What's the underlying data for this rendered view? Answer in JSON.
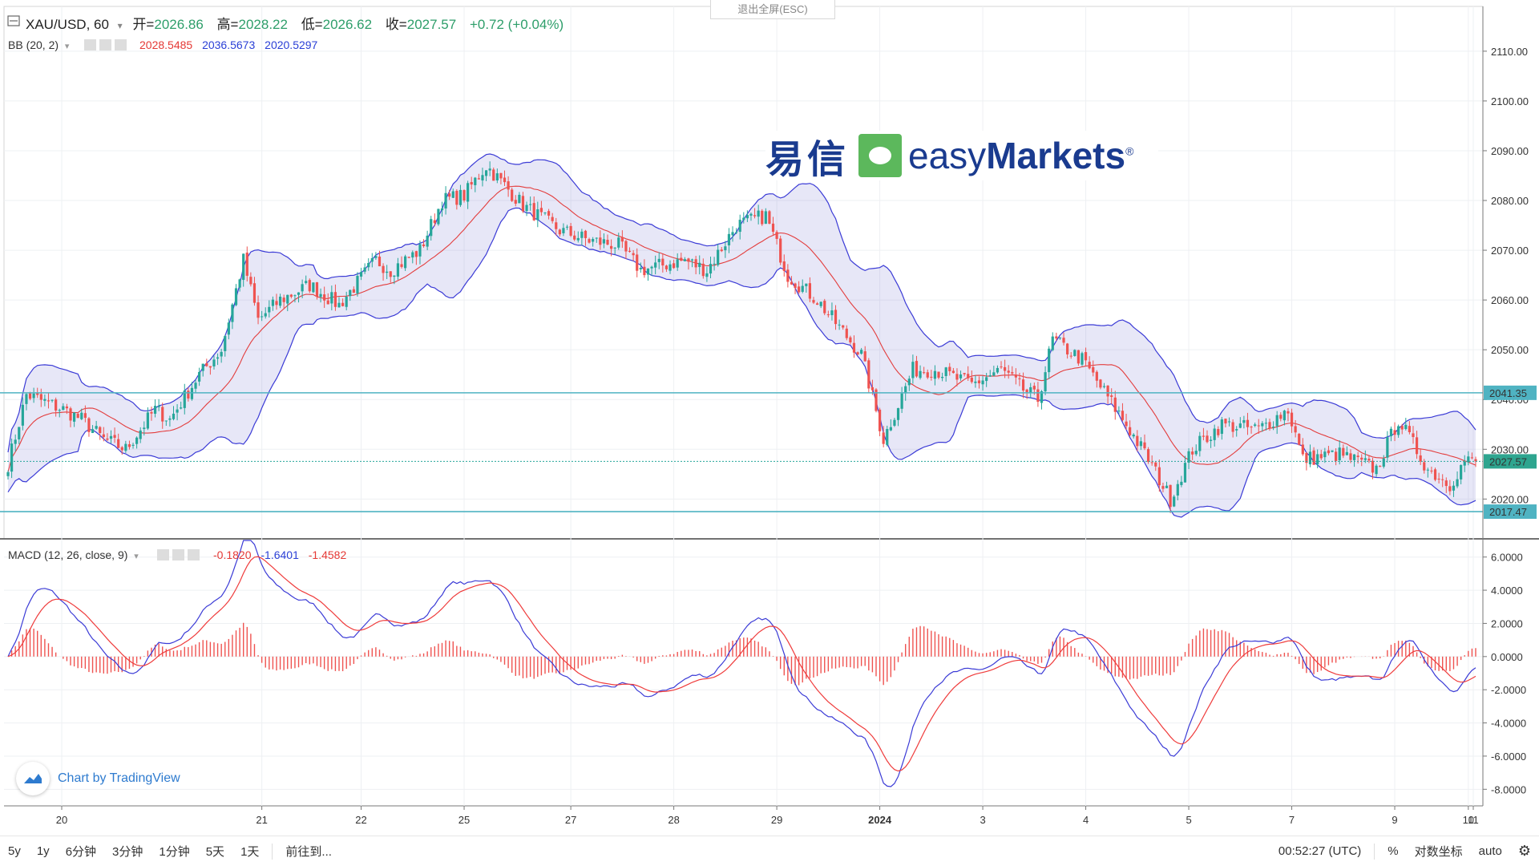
{
  "header": {
    "symbol": "XAU/USD, 60",
    "open_label": "开=",
    "open": "2026.86",
    "high_label": "高=",
    "high": "2028.22",
    "low_label": "低=",
    "low": "2026.62",
    "close_label": "收=",
    "close": "2027.57",
    "change": "+0.72 (+0.04%)"
  },
  "bb": {
    "label": "BB (20, 2)",
    "v1": "2028.5485",
    "v2": "2036.5673",
    "v3": "2020.5297"
  },
  "macd": {
    "label": "MACD (12, 26, close, 9)",
    "v1": "-0.1820",
    "v2": "-1.6401",
    "v3": "-1.4582"
  },
  "exit_fullscreen": "退出全屏(ESC)",
  "logo": {
    "cn": "易信",
    "en_a": "easy",
    "en_b": "Markets",
    "reg": "®"
  },
  "tv_brand": "Chart by TradingView",
  "toolbar": {
    "ranges": [
      "5y",
      "1y",
      "6分钟",
      "3分钟",
      "1分钟",
      "5天",
      "1天"
    ],
    "goto": "前往到...",
    "time": "00:52:27 (UTC)",
    "percent": "%",
    "log": "对数坐标",
    "auto": "auto"
  },
  "colors": {
    "up": "#26a69a",
    "down": "#ef5350",
    "bb_band": "#3b3bd6",
    "bb_basis": "#e33d3d",
    "macd": "#3b3bd6",
    "signal": "#ef3b3b",
    "hline": "#4fb3c2"
  },
  "chart_data": [
    {
      "type": "candlestick",
      "title": "XAU/USD, 60",
      "x_ticks": [
        "20",
        "21",
        "22",
        "25",
        "27",
        "28",
        "29",
        "2024",
        "3",
        "4",
        "5",
        "7",
        "9",
        "10",
        "11"
      ],
      "y_ticks": [
        "2020.00",
        "2030.00",
        "2040.00",
        "2050.00",
        "2060.00",
        "2070.00",
        "2080.00",
        "2090.00",
        "2100.00",
        "2110.00"
      ],
      "ylim": [
        2012,
        2119
      ],
      "price_labels": [
        "2041.35",
        "2027.57",
        "2017.47"
      ],
      "horizontal_lines": [
        2041.35,
        2017.47
      ],
      "close_anchors": [
        [
          0,
          2027
        ],
        [
          5,
          2041
        ],
        [
          15,
          2038
        ],
        [
          20,
          2036
        ],
        [
          26,
          2032
        ],
        [
          32,
          2030
        ],
        [
          40,
          2038
        ],
        [
          44,
          2036
        ],
        [
          52,
          2045
        ],
        [
          58,
          2050
        ],
        [
          64,
          2068
        ],
        [
          68,
          2056
        ],
        [
          74,
          2060
        ],
        [
          82,
          2063
        ],
        [
          90,
          2059
        ],
        [
          100,
          2068
        ],
        [
          104,
          2066
        ],
        [
          112,
          2070
        ],
        [
          118,
          2080
        ],
        [
          124,
          2081
        ],
        [
          130,
          2087
        ],
        [
          135,
          2083
        ],
        [
          140,
          2079
        ],
        [
          150,
          2074
        ],
        [
          158,
          2072
        ],
        [
          166,
          2071
        ],
        [
          172,
          2066
        ],
        [
          184,
          2068
        ],
        [
          190,
          2066
        ],
        [
          198,
          2075
        ],
        [
          206,
          2077
        ],
        [
          212,
          2065
        ],
        [
          220,
          2060
        ],
        [
          232,
          2049
        ],
        [
          238,
          2032
        ],
        [
          246,
          2046
        ],
        [
          252,
          2046
        ],
        [
          262,
          2043
        ],
        [
          270,
          2046
        ],
        [
          276,
          2042
        ],
        [
          280,
          2040
        ],
        [
          284,
          2052
        ],
        [
          292,
          2048
        ],
        [
          304,
          2035
        ],
        [
          310,
          2028
        ],
        [
          316,
          2020
        ],
        [
          322,
          2030
        ],
        [
          330,
          2035
        ],
        [
          340,
          2034
        ],
        [
          348,
          2038
        ],
        [
          352,
          2028
        ],
        [
          362,
          2029
        ],
        [
          372,
          2026
        ],
        [
          378,
          2036
        ],
        [
          386,
          2026
        ],
        [
          392,
          2023
        ],
        [
          396,
          2027.57
        ]
      ],
      "bollinger": {
        "period": 20,
        "mult": 2,
        "values": [
          2028.5485,
          2036.5673,
          2020.5297
        ]
      }
    },
    {
      "type": "macd",
      "params": "12, 26, close, 9",
      "y_ticks": [
        "-8.0000",
        "-6.0000",
        "-4.0000",
        "-2.0000",
        "0.0000",
        "2.0000",
        "4.0000",
        "6.0000"
      ],
      "ylim": [
        -9,
        7
      ],
      "values": {
        "histogram": -0.182,
        "macd": -1.6401,
        "signal": -1.4582
      }
    }
  ]
}
